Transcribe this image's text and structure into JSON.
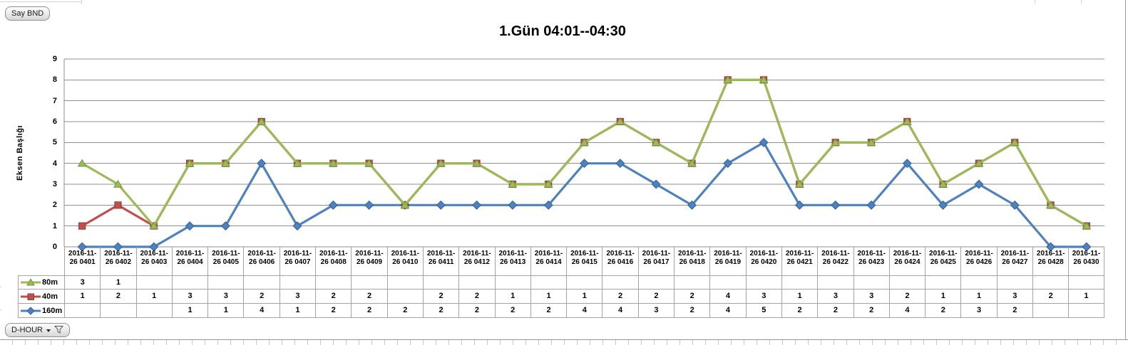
{
  "pivot_buttons": {
    "say_bnd": "Say BND",
    "d_hour": "D-HOUR"
  },
  "chart_data": {
    "type": "line",
    "stacked": true,
    "grid": "horizontal",
    "legend_position": "data-table-left",
    "title": "1.Gün 04:01--04:30",
    "ylabel": "Eksen Başlığı",
    "ylim": [
      0,
      9
    ],
    "ytick_step": 1,
    "x_prefix": "2016-11-",
    "categories": [
      "26 0401",
      "26 0402",
      "26 0403",
      "26 0404",
      "26 0405",
      "26 0406",
      "26 0407",
      "26 0408",
      "26 0409",
      "26 0410",
      "26 0411",
      "26 0412",
      "26 0413",
      "26 0414",
      "26 0415",
      "26 0416",
      "26 0417",
      "26 0418",
      "26 0419",
      "26 0420",
      "26 0421",
      "26 0422",
      "26 0423",
      "26 0424",
      "26 0425",
      "26 0426",
      "26 0427",
      "26 0428",
      "26 0430"
    ],
    "series": [
      {
        "name": "80m",
        "marker": "triangle",
        "color": "#9BBB59",
        "edge": "#77933C",
        "values": [
          3,
          1,
          null,
          null,
          null,
          null,
          null,
          null,
          null,
          null,
          null,
          null,
          null,
          null,
          null,
          null,
          null,
          null,
          null,
          null,
          null,
          null,
          null,
          null,
          null,
          null,
          null,
          null,
          null
        ]
      },
      {
        "name": "40m",
        "marker": "square",
        "color": "#C0504D",
        "edge": "#953735",
        "values": [
          1,
          2,
          1,
          3,
          3,
          2,
          3,
          2,
          2,
          null,
          2,
          2,
          1,
          1,
          1,
          2,
          2,
          2,
          4,
          3,
          1,
          3,
          3,
          2,
          1,
          1,
          3,
          2,
          1
        ]
      },
      {
        "name": "160m",
        "marker": "diamond",
        "color": "#4F81BD",
        "edge": "#31609B",
        "values": [
          null,
          null,
          null,
          1,
          1,
          4,
          1,
          2,
          2,
          2,
          2,
          2,
          2,
          2,
          4,
          4,
          3,
          2,
          4,
          5,
          2,
          2,
          2,
          4,
          2,
          3,
          2,
          null,
          null
        ]
      }
    ],
    "stack_note": "stacking bottom-to-top: 160m, 40m, 80m",
    "axis_color": "#8f8f8f",
    "gridline_color": "#8f8f8f",
    "table_border_color": "#a3a3a3"
  }
}
